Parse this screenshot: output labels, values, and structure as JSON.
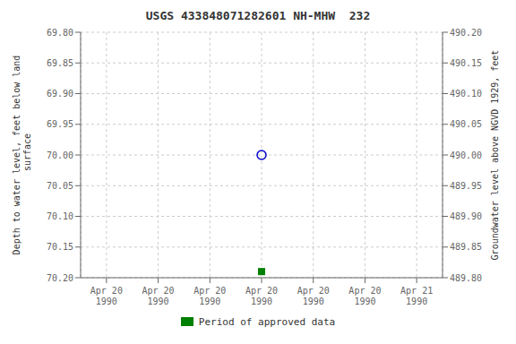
{
  "chart_data": {
    "type": "scatter",
    "title": "USGS 433848071282601 NH-MHW  232",
    "y_label": "Depth to water level, feet below land\n surface",
    "y2_label": "Groundwater level above NGVD 1929, feet",
    "categories": [
      "Apr 20\n1990",
      "Apr 20\n1990",
      "Apr 20\n1990",
      "Apr 20\n1990",
      "Apr 20\n1990",
      "Apr 20\n1990",
      "Apr 21\n1990"
    ],
    "series": [
      {
        "color": "#0000cc",
        "marker": "circle_open",
        "values": [
          null,
          null,
          null,
          70.0,
          null,
          null,
          null
        ]
      },
      {
        "name": "Period of approved data",
        "color": "#008000",
        "marker": "square",
        "values": [
          null,
          null,
          null,
          70.19,
          null,
          null,
          null
        ]
      }
    ],
    "ylim": [
      70.2,
      69.8
    ],
    "yticks": [
      {
        "value": 69.8,
        "label": "69.80"
      },
      {
        "value": 69.85,
        "label": "69.85"
      },
      {
        "value": 69.9,
        "label": "69.90"
      },
      {
        "value": 69.95,
        "label": "69.95"
      },
      {
        "value": 70.0,
        "label": "70.00"
      },
      {
        "value": 70.05,
        "label": "70.05"
      },
      {
        "value": 70.1,
        "label": "70.10"
      },
      {
        "value": 70.15,
        "label": "70.15"
      },
      {
        "value": 70.2,
        "label": "70.20"
      }
    ],
    "y2lim": [
      489.8,
      490.2
    ],
    "y2ticks": [
      {
        "value": 490.2,
        "label": "490.20"
      },
      {
        "value": 490.15,
        "label": "490.15"
      },
      {
        "value": 490.1,
        "label": "490.10"
      },
      {
        "value": 490.05,
        "label": "490.05"
      },
      {
        "value": 490.0,
        "label": "490.00"
      },
      {
        "value": 489.95,
        "label": "489.95"
      },
      {
        "value": 489.9,
        "label": "489.90"
      },
      {
        "value": 489.85,
        "label": "489.85"
      },
      {
        "value": 489.8,
        "label": "489.80"
      }
    ],
    "grid": true,
    "legend": "bottom"
  }
}
